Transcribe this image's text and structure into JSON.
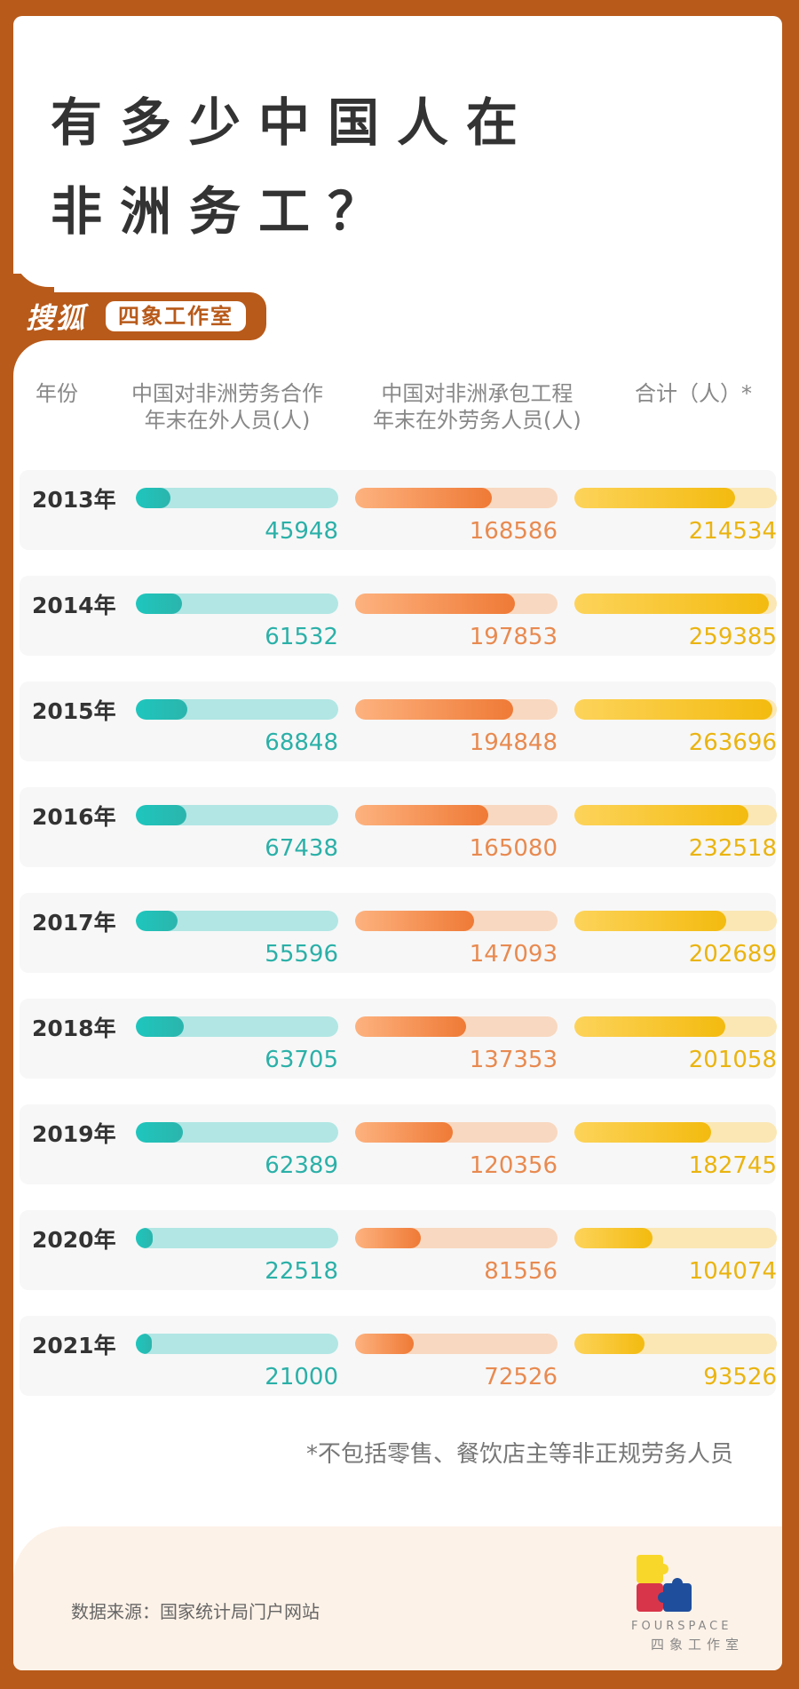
{
  "title": {
    "line1": "有多少中国人在",
    "line2": "非洲务工？"
  },
  "brand": {
    "logo_text": "搜狐",
    "pill_text": "四象工作室"
  },
  "headers": {
    "year": "年份",
    "col1_line1": "中国对非洲劳务合作",
    "col1_line2": "年末在外人员(人)",
    "col2_line1": "中国对非洲承包工程",
    "col2_line2": "年末在外劳务人员(人)",
    "col3": "合计（人）*"
  },
  "colors": {
    "teal": "#2bb0a8",
    "orange": "#e88a50",
    "yellow": "#eab410",
    "frame": "#b85a1a"
  },
  "chart_data": {
    "type": "bar",
    "categories": [
      "2013年",
      "2014年",
      "2015年",
      "2016年",
      "2017年",
      "2018年",
      "2019年",
      "2020年",
      "2021年"
    ],
    "series": [
      {
        "name": "中国对非洲劳务合作年末在外人员(人)",
        "values": [
          45948,
          61532,
          68848,
          67438,
          55596,
          63705,
          62389,
          22518,
          21000
        ]
      },
      {
        "name": "中国对非洲承包工程年末在外劳务人员(人)",
        "values": [
          168586,
          197853,
          194848,
          165080,
          147093,
          137353,
          120356,
          81556,
          72526
        ]
      },
      {
        "name": "合计（人）*",
        "values": [
          214534,
          259385,
          263696,
          232518,
          202689,
          201058,
          182745,
          104074,
          93526
        ]
      }
    ],
    "col_max": [
      270000,
      250000,
      270000
    ]
  },
  "note": "*不包括零售、餐饮店主等非正规劳务人员",
  "source": "数据来源：国家统计局门户网站",
  "footer_logo": {
    "en": "FOURSPACE",
    "cn": "四象工作室"
  }
}
